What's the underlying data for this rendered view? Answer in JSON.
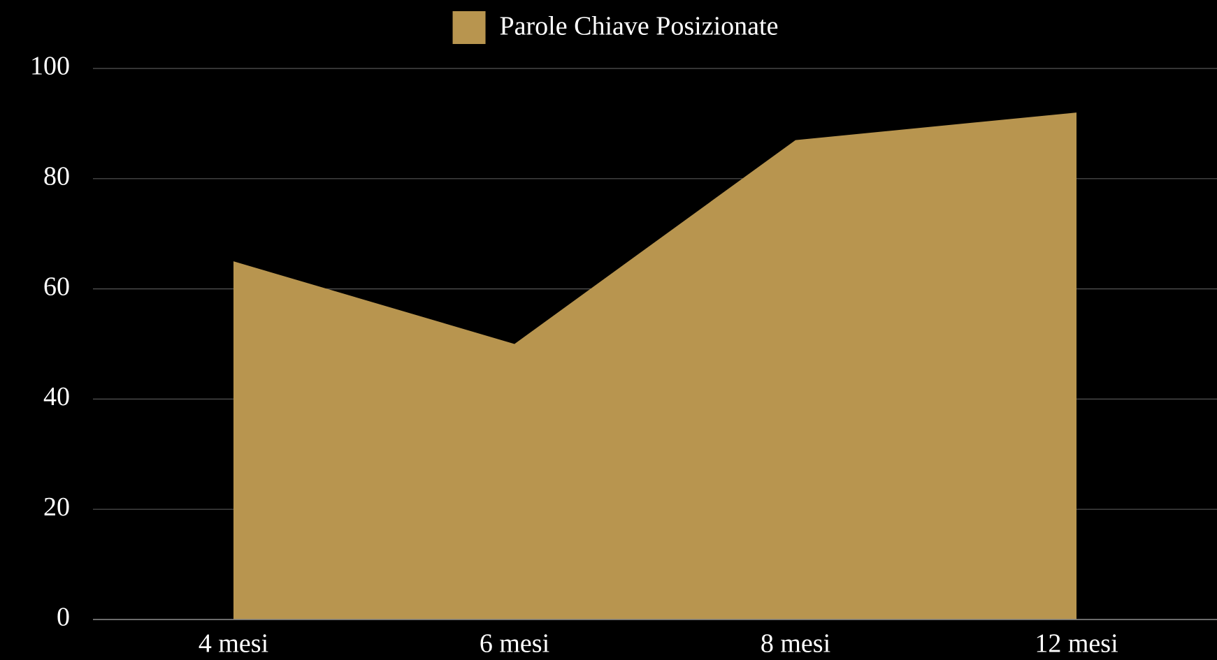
{
  "chart_data": {
    "type": "area",
    "categories": [
      "4 mesi",
      "6 mesi",
      "8 mesi",
      "12 mesi"
    ],
    "series": [
      {
        "name": "Parole Chiave Posizionate",
        "color": "#b8954f",
        "values": [
          65,
          50,
          87,
          92
        ]
      }
    ],
    "ylim": [
      0,
      100
    ],
    "yticks": [
      0,
      20,
      40,
      60,
      80,
      100
    ],
    "grid": true,
    "legend": "top"
  }
}
